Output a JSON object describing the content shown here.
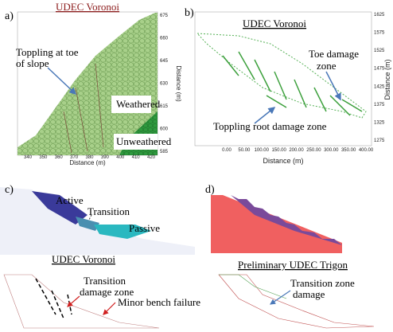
{
  "panels": [
    {
      "label": "a)",
      "title": "UDEC Voronoi",
      "annotations": [
        "Toppling at toe",
        "of slope",
        "Weathered",
        "Unweathered"
      ],
      "x_axis": {
        "title": "Distance (m)",
        "ticks": [
          "340",
          "350",
          "360",
          "370",
          "380",
          "390",
          "400",
          "410",
          "420"
        ]
      },
      "y_axis": {
        "title": "Distance (m)",
        "ticks": [
          "675",
          "660",
          "645",
          "630",
          "615",
          "600",
          "585"
        ]
      }
    },
    {
      "label": "b)",
      "title": "UDEC Voronoi",
      "annotations": [
        "Toe damage",
        "zone",
        "Toppling root damage zone"
      ],
      "x_axis": {
        "title": "Distance (m)",
        "ticks": [
          "0.00",
          "50.00",
          "100.00",
          "150.00",
          "200.00",
          "250.00",
          "300.00",
          "350.00",
          "400.00"
        ]
      },
      "y_axis": {
        "title": "Distance (m)",
        "ticks": [
          "1625",
          "1575",
          "1525",
          "1475",
          "1425",
          "1375",
          "1325",
          "1275"
        ]
      }
    },
    {
      "label": "c)",
      "title": "UDEC Voronoi",
      "annotations": [
        "Active",
        "Transition",
        "Passive",
        "Transition",
        "damage zone",
        "Minor bench failure"
      ]
    },
    {
      "label": "d)",
      "title": "Preliminary  UDEC Trigon",
      "annotations": [
        "Transition zone",
        "damage"
      ]
    }
  ]
}
